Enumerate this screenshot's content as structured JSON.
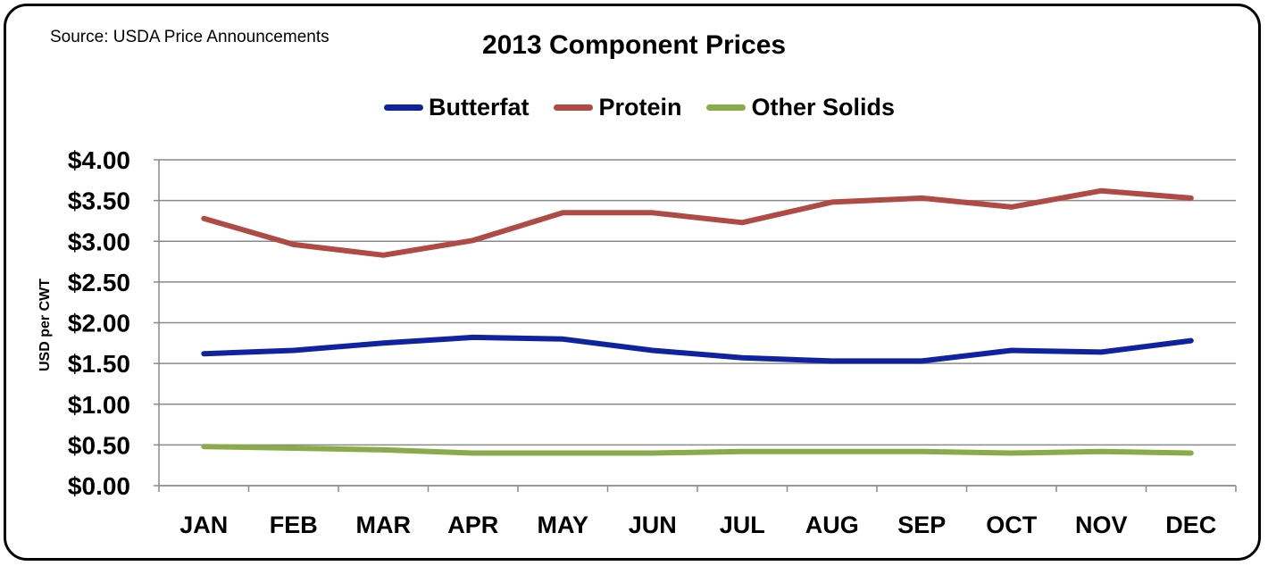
{
  "source_note": "Source: USDA Price Announcements",
  "colors": {
    "butterfat": "#0f23a0",
    "protein": "#b04a45",
    "other_solids": "#8aab4c",
    "grid": "#8a8a8a"
  },
  "chart_data": {
    "type": "line",
    "title": "2013 Component Prices",
    "ylabel": "USD per CWT",
    "xlabel": "",
    "categories": [
      "JAN",
      "FEB",
      "MAR",
      "APR",
      "MAY",
      "JUN",
      "JUL",
      "AUG",
      "SEP",
      "OCT",
      "NOV",
      "DEC"
    ],
    "ylim": [
      0,
      4
    ],
    "yticks": [
      0,
      0.5,
      1,
      1.5,
      2,
      2.5,
      3,
      3.5,
      4
    ],
    "ytick_labels": [
      "$0.00",
      "$0.50",
      "$1.00",
      "$1.50",
      "$2.00",
      "$2.50",
      "$3.00",
      "$3.50",
      "$4.00"
    ],
    "grid": true,
    "legend_position": "top-center",
    "series": [
      {
        "name": "Butterfat",
        "color_key": "butterfat",
        "values": [
          1.62,
          1.66,
          1.75,
          1.82,
          1.8,
          1.66,
          1.57,
          1.53,
          1.53,
          1.66,
          1.64,
          1.78
        ]
      },
      {
        "name": "Protein",
        "color_key": "protein",
        "values": [
          3.28,
          2.96,
          2.83,
          3.01,
          3.35,
          3.35,
          3.23,
          3.48,
          3.53,
          3.42,
          3.62,
          3.53
        ]
      },
      {
        "name": "Other Solids",
        "color_key": "other_solids",
        "values": [
          0.48,
          0.46,
          0.44,
          0.4,
          0.4,
          0.4,
          0.42,
          0.42,
          0.42,
          0.4,
          0.42,
          0.4
        ]
      }
    ]
  }
}
